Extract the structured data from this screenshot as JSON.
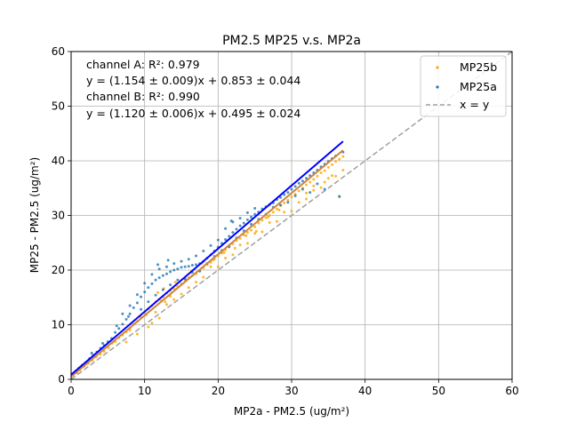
{
  "chart_data": {
    "type": "scatter",
    "title": "PM2.5 MP25 v.s. MP2a",
    "xlabel": "MP2a - PM2.5 (ug/m²)",
    "ylabel": "MP25 - PM2.5 (ug/m²)",
    "xlim": [
      0,
      60
    ],
    "ylim": [
      0,
      60
    ],
    "x_ticks": [
      0,
      10,
      20,
      30,
      40,
      50,
      60
    ],
    "y_ticks": [
      0,
      10,
      20,
      30,
      40,
      50,
      60
    ],
    "grid": true,
    "legend_position": "top-right",
    "annotations": [
      "channel A: R²: 0.979",
      "y = (1.154 ± 0.009)x + 0.853 ± 0.044",
      "channel B: R²: 0.990",
      "y = (1.120 ± 0.006)x + 0.495 ± 0.024"
    ],
    "series": [
      {
        "name": "MP25b",
        "kind": "scatter",
        "color": "#ffa500",
        "fit": {
          "slope": 1.12,
          "intercept": 0.495,
          "x_range": [
            0,
            37
          ]
        },
        "fit_color": "#cd853f",
        "points": [
          [
            0.3,
            0.8
          ],
          [
            0.8,
            1.2
          ],
          [
            1.2,
            1.7
          ],
          [
            1.8,
            2.4
          ],
          [
            2.3,
            2.9
          ],
          [
            2.9,
            3.5
          ],
          [
            3.4,
            4.1
          ],
          [
            4.0,
            4.6
          ],
          [
            4.5,
            5.1
          ],
          [
            5.1,
            5.8
          ],
          [
            5.6,
            6.6
          ],
          [
            6.0,
            6.9
          ],
          [
            6.5,
            7.6
          ],
          [
            7.0,
            8.1
          ],
          [
            7.5,
            8.7
          ],
          [
            8.0,
            9.4
          ],
          [
            8.5,
            10.1
          ],
          [
            9.0,
            10.6
          ],
          [
            9.5,
            11.4
          ],
          [
            10.0,
            12.2
          ],
          [
            10.5,
            12.9
          ],
          [
            11.0,
            13.5
          ],
          [
            11.5,
            14.2
          ],
          [
            12.0,
            14.7
          ],
          [
            12.5,
            15.1
          ],
          [
            13.0,
            15.8
          ],
          [
            13.5,
            16.2
          ],
          [
            14.0,
            16.6
          ],
          [
            14.5,
            17.0
          ],
          [
            15.0,
            17.5
          ],
          [
            15.5,
            18.1
          ],
          [
            16.0,
            18.6
          ],
          [
            16.5,
            19.0
          ],
          [
            17.0,
            19.3
          ],
          [
            17.5,
            19.9
          ],
          [
            18.0,
            20.4
          ],
          [
            18.5,
            21.0
          ],
          [
            19.0,
            21.4
          ],
          [
            19.5,
            22.0
          ],
          [
            20.0,
            22.6
          ],
          [
            20.5,
            23.1
          ],
          [
            21.0,
            23.7
          ],
          [
            21.5,
            24.2
          ],
          [
            22.0,
            24.8
          ],
          [
            22.5,
            25.4
          ],
          [
            23.0,
            25.8
          ],
          [
            23.5,
            26.4
          ],
          [
            24.0,
            26.9
          ],
          [
            24.5,
            27.3
          ],
          [
            25.0,
            27.9
          ],
          [
            25.5,
            28.6
          ],
          [
            26.0,
            29.1
          ],
          [
            26.5,
            29.6
          ],
          [
            27.0,
            30.0
          ],
          [
            27.5,
            30.6
          ],
          [
            28.0,
            31.2
          ],
          [
            28.5,
            31.8
          ],
          [
            29.0,
            32.3
          ],
          [
            29.5,
            32.8
          ],
          [
            30.0,
            33.4
          ],
          [
            30.5,
            33.9
          ],
          [
            31.0,
            34.5
          ],
          [
            31.5,
            35.0
          ],
          [
            32.0,
            35.6
          ],
          [
            32.5,
            36.1
          ],
          [
            33.0,
            36.6
          ],
          [
            33.5,
            37.2
          ],
          [
            34.0,
            37.8
          ],
          [
            34.5,
            38.2
          ],
          [
            35.0,
            38.8
          ],
          [
            35.5,
            39.3
          ],
          [
            36.0,
            39.9
          ],
          [
            36.5,
            40.3
          ],
          [
            37.0,
            40.8
          ],
          [
            13.0,
            13.7
          ],
          [
            14.0,
            14.6
          ],
          [
            15.0,
            15.6
          ],
          [
            17.0,
            17.8
          ],
          [
            9.0,
            8.3
          ],
          [
            10.5,
            9.6
          ],
          [
            12.0,
            11.2
          ],
          [
            16.0,
            16.8
          ],
          [
            18.0,
            18.7
          ],
          [
            20.0,
            20.6
          ],
          [
            22.0,
            22.8
          ],
          [
            24.0,
            24.9
          ],
          [
            26.0,
            27.0
          ],
          [
            28.0,
            28.9
          ],
          [
            30.0,
            30.8
          ],
          [
            32.0,
            33.0
          ],
          [
            34.0,
            35.1
          ],
          [
            36.0,
            37.2
          ],
          [
            37.0,
            38.3
          ],
          [
            7.5,
            6.8
          ],
          [
            8.0,
            9.0
          ],
          [
            11.5,
            12.3
          ],
          [
            11.0,
            10.3
          ],
          [
            12.8,
            14.2
          ],
          [
            13.5,
            15.2
          ],
          [
            19.0,
            20.6
          ],
          [
            21.0,
            22.2
          ],
          [
            23.0,
            24.6
          ],
          [
            25.0,
            26.7
          ],
          [
            27.0,
            28.7
          ],
          [
            29.0,
            30.6
          ],
          [
            31.0,
            32.4
          ],
          [
            33.0,
            34.6
          ],
          [
            35.0,
            36.8
          ],
          [
            36.5,
            33.4
          ],
          [
            35.5,
            37.3
          ],
          [
            34.5,
            36.1
          ],
          [
            33.0,
            35.4
          ],
          [
            32.0,
            34.1
          ],
          [
            10.2,
            11.8
          ],
          [
            12.3,
            14.4
          ],
          [
            11.8,
            15.9
          ],
          [
            12.6,
            16.6
          ],
          [
            14.2,
            17.8
          ],
          [
            15.6,
            18.2
          ],
          [
            16.4,
            19.8
          ],
          [
            17.8,
            21.2
          ],
          [
            19.3,
            21.9
          ],
          [
            20.8,
            23.2
          ],
          [
            22.3,
            24.0
          ],
          [
            23.8,
            26.3
          ],
          [
            25.2,
            27.1
          ],
          [
            26.8,
            29.7
          ],
          [
            28.3,
            31.0
          ]
        ]
      },
      {
        "name": "MP25a",
        "kind": "scatter",
        "color": "#1f77b4",
        "fit": {
          "slope": 1.154,
          "intercept": 0.853,
          "x_range": [
            0,
            37
          ]
        },
        "fit_color": "#0000ff",
        "points": [
          [
            0.2,
            1.0
          ],
          [
            0.6,
            1.5
          ],
          [
            1.0,
            2.0
          ],
          [
            1.5,
            2.6
          ],
          [
            2.0,
            3.1
          ],
          [
            2.5,
            3.8
          ],
          [
            3.0,
            4.4
          ],
          [
            3.5,
            5.0
          ],
          [
            4.0,
            5.7
          ],
          [
            4.5,
            6.2
          ],
          [
            5.0,
            6.9
          ],
          [
            5.5,
            7.5
          ],
          [
            6.0,
            8.6
          ],
          [
            6.5,
            9.3
          ],
          [
            7.0,
            10.1
          ],
          [
            7.5,
            11.0
          ],
          [
            8.0,
            12.0
          ],
          [
            8.5,
            13.1
          ],
          [
            9.0,
            14.0
          ],
          [
            9.5,
            15.1
          ],
          [
            10.0,
            16.0
          ],
          [
            10.5,
            16.8
          ],
          [
            11.0,
            17.5
          ],
          [
            11.5,
            18.2
          ],
          [
            12.0,
            18.6
          ],
          [
            12.5,
            19.0
          ],
          [
            13.0,
            19.3
          ],
          [
            13.5,
            19.7
          ],
          [
            14.0,
            20.0
          ],
          [
            14.5,
            20.2
          ],
          [
            15.0,
            20.5
          ],
          [
            15.5,
            20.6
          ],
          [
            16.0,
            20.7
          ],
          [
            16.5,
            20.9
          ],
          [
            17.0,
            21.0
          ],
          [
            17.5,
            21.2
          ],
          [
            18.0,
            21.6
          ],
          [
            18.5,
            22.2
          ],
          [
            19.0,
            22.8
          ],
          [
            19.5,
            23.5
          ],
          [
            20.0,
            24.2
          ],
          [
            20.5,
            24.9
          ],
          [
            21.0,
            25.6
          ],
          [
            21.5,
            26.2
          ],
          [
            22.0,
            26.9
          ],
          [
            22.5,
            27.5
          ],
          [
            23.0,
            28.1
          ],
          [
            23.5,
            28.6
          ],
          [
            24.0,
            29.2
          ],
          [
            24.5,
            29.7
          ],
          [
            25.0,
            30.2
          ],
          [
            25.5,
            30.6
          ],
          [
            26.0,
            31.2
          ],
          [
            26.5,
            31.6
          ],
          [
            27.0,
            32.0
          ],
          [
            27.5,
            32.3
          ],
          [
            28.0,
            32.9
          ],
          [
            28.5,
            33.3
          ],
          [
            29.0,
            33.8
          ],
          [
            29.5,
            34.2
          ],
          [
            30.0,
            34.8
          ],
          [
            30.5,
            35.3
          ],
          [
            31.0,
            35.9
          ],
          [
            31.5,
            36.3
          ],
          [
            32.0,
            36.8
          ],
          [
            32.5,
            37.3
          ],
          [
            33.0,
            37.8
          ],
          [
            33.5,
            38.3
          ],
          [
            34.0,
            38.9
          ],
          [
            34.5,
            39.4
          ],
          [
            35.0,
            39.9
          ],
          [
            35.5,
            40.4
          ],
          [
            36.0,
            40.9
          ],
          [
            37.0,
            41.6
          ],
          [
            7.0,
            12.0
          ],
          [
            8.0,
            13.5
          ],
          [
            9.0,
            15.5
          ],
          [
            10.0,
            17.6
          ],
          [
            11.0,
            19.2
          ],
          [
            12.0,
            20.2
          ],
          [
            13.0,
            20.6
          ],
          [
            14.0,
            21.2
          ],
          [
            15.0,
            21.6
          ],
          [
            16.0,
            22.0
          ],
          [
            17.0,
            22.6
          ],
          [
            18.0,
            23.5
          ],
          [
            19.0,
            24.5
          ],
          [
            20.0,
            25.5
          ],
          [
            21.0,
            27.6
          ],
          [
            22.0,
            28.8
          ],
          [
            23.0,
            29.5
          ],
          [
            24.0,
            30.5
          ],
          [
            25.0,
            31.3
          ],
          [
            10.5,
            14.2
          ],
          [
            12.5,
            16.4
          ],
          [
            14.5,
            18.2
          ],
          [
            16.5,
            19.6
          ],
          [
            18.5,
            21.2
          ],
          [
            20.5,
            23.6
          ],
          [
            22.5,
            25.9
          ],
          [
            24.5,
            28.4
          ],
          [
            26.5,
            30.2
          ],
          [
            28.5,
            31.9
          ],
          [
            30.5,
            33.6
          ],
          [
            32.5,
            34.2
          ],
          [
            34.5,
            34.8
          ],
          [
            36.5,
            33.5
          ],
          [
            33.5,
            35.8
          ],
          [
            31.5,
            34.8
          ],
          [
            9.5,
            12.8
          ],
          [
            11.5,
            15.4
          ],
          [
            13.5,
            17.3
          ],
          [
            15.5,
            18.4
          ],
          [
            17.5,
            19.8
          ],
          [
            19.5,
            22.5
          ],
          [
            21.5,
            24.3
          ],
          [
            23.5,
            27.2
          ],
          [
            25.5,
            29.3
          ],
          [
            27.5,
            31.5
          ],
          [
            29.5,
            32.4
          ],
          [
            11.8,
            21.0
          ],
          [
            13.2,
            21.8
          ],
          [
            21.8,
            29.0
          ],
          [
            6.2,
            9.8
          ],
          [
            7.8,
            11.5
          ],
          [
            4.3,
            6.6
          ],
          [
            2.8,
            4.8
          ],
          [
            1.3,
            2.3
          ]
        ]
      }
    ],
    "reference_line": {
      "name": "x = y",
      "color": "#a0a0a0",
      "style": "dashed",
      "x_range": [
        0,
        60
      ]
    }
  }
}
